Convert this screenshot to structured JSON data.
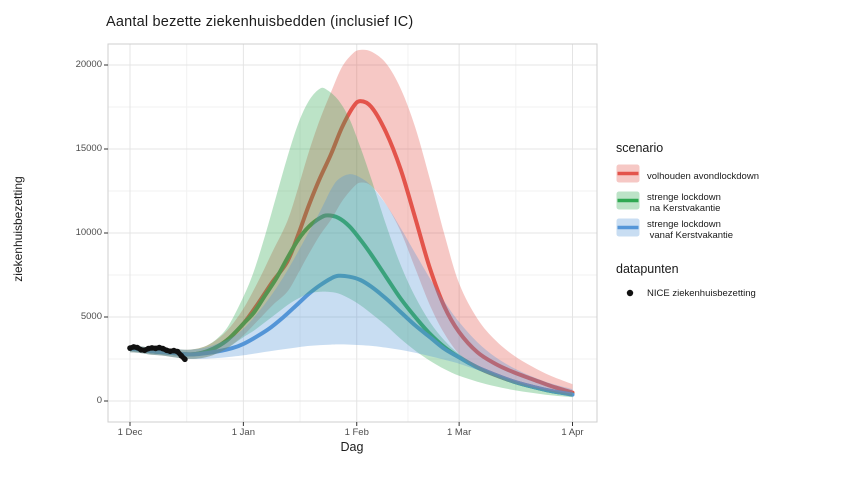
{
  "title": "Aantal bezette ziekenhuisbedden (inclusief IC)",
  "axes": {
    "x_label": "Dag",
    "y_label": "ziekenhuisbezetting",
    "x_ticks": [
      {
        "day": 0,
        "label": "1 Dec"
      },
      {
        "day": 31,
        "label": "1 Jan"
      },
      {
        "day": 62,
        "label": "1 Feb"
      },
      {
        "day": 90,
        "label": "1 Mar"
      },
      {
        "day": 121,
        "label": "1 Apr"
      }
    ],
    "y_ticks": [
      0,
      5000,
      10000,
      15000,
      20000
    ]
  },
  "legend": {
    "scenario_title": "scenario",
    "datapoints_title": "datapunten",
    "datapoints_label": "NICE ziekenhuisbezetting",
    "point_color": "#111111"
  },
  "colors": {
    "red": "#e3544c",
    "green": "#2fa852",
    "blue": "#5596d8",
    "ribbon_opacity": 0.32,
    "grid_major": "#e4e4e4",
    "grid_minor": "#f2f2f2",
    "panel_border": "#cfcfcf",
    "tick_mark": "#333333",
    "points": "#111111"
  },
  "chart_data": {
    "type": "line",
    "title": "Aantal bezette ziekenhuisbedden (inclusief IC)",
    "xlabel": "Dag",
    "ylabel": "ziekenhuisbezetting",
    "x_unit": "days since 1 Dec",
    "ylim": [
      0,
      21000
    ],
    "grid": true,
    "legend_position": "right",
    "series": [
      {
        "name": "volhouden avondlockdown",
        "legend_lines": "volhouden avondlockdown",
        "color_key": "red",
        "days": [
          0,
          3,
          6,
          9,
          12,
          15,
          18,
          21,
          24,
          27,
          31,
          35,
          39,
          43,
          46,
          49,
          52,
          55,
          58,
          61,
          63,
          66,
          70,
          74,
          78,
          82,
          86,
          90,
          95,
          100,
          105,
          110,
          115,
          121
        ],
        "line": [
          3100,
          3050,
          2950,
          2900,
          2850,
          2780,
          2800,
          2950,
          3250,
          3700,
          4600,
          5800,
          7100,
          8300,
          9900,
          11700,
          13300,
          14700,
          16300,
          17500,
          17850,
          17500,
          16000,
          13800,
          10900,
          7900,
          5600,
          4100,
          2900,
          2200,
          1700,
          1300,
          900,
          500
        ],
        "lo": [
          2900,
          2850,
          2750,
          2700,
          2600,
          2520,
          2520,
          2620,
          2850,
          3200,
          3900,
          4800,
          5700,
          6500,
          7600,
          8800,
          9900,
          10800,
          11900,
          12700,
          13000,
          12800,
          11700,
          10100,
          7900,
          5700,
          4000,
          2800,
          1900,
          1400,
          1050,
          800,
          550,
          300
        ],
        "hi": [
          3300,
          3250,
          3150,
          3100,
          3100,
          3050,
          3100,
          3300,
          3700,
          4300,
          5500,
          7100,
          8900,
          10700,
          12700,
          14900,
          16800,
          18400,
          19900,
          20700,
          20900,
          20800,
          20100,
          18600,
          16300,
          13200,
          9900,
          7000,
          4900,
          3600,
          2700,
          2050,
          1500,
          1000
        ]
      },
      {
        "name": "strenge lockdown na Kerstvakantie",
        "legend_lines": "strenge lockdown\n na Kerstvakantie",
        "color_key": "green",
        "days": [
          0,
          3,
          6,
          9,
          12,
          15,
          18,
          21,
          24,
          27,
          31,
          34,
          37,
          40,
          43,
          46,
          49,
          52,
          54,
          57,
          60,
          63,
          66,
          70,
          74,
          78,
          82,
          86,
          90,
          95,
          100,
          105,
          110,
          115,
          121
        ],
        "line": [
          3100,
          3050,
          2950,
          2900,
          2850,
          2780,
          2800,
          2950,
          3250,
          3700,
          4600,
          5300,
          6300,
          7300,
          8500,
          9600,
          10400,
          10900,
          11050,
          10900,
          10400,
          9600,
          8700,
          7400,
          6100,
          5000,
          4000,
          3200,
          2600,
          2000,
          1550,
          1150,
          850,
          600,
          400
        ],
        "lo": [
          2900,
          2850,
          2750,
          2700,
          2600,
          2520,
          2520,
          2620,
          2850,
          3200,
          3800,
          4200,
          4700,
          5200,
          5700,
          6100,
          6400,
          6500,
          6500,
          6400,
          6100,
          5700,
          5200,
          4500,
          3700,
          3000,
          2400,
          1900,
          1500,
          1150,
          870,
          650,
          480,
          340,
          220
        ],
        "hi": [
          3300,
          3250,
          3150,
          3100,
          3100,
          3050,
          3100,
          3300,
          3750,
          4500,
          6200,
          7800,
          9900,
          12200,
          14500,
          16500,
          17900,
          18600,
          18500,
          17900,
          16800,
          15100,
          13200,
          10500,
          8100,
          6200,
          4700,
          3600,
          2800,
          2100,
          1600,
          1200,
          880,
          630,
          430
        ]
      },
      {
        "name": "strenge lockdown vanaf Kerstvakantie",
        "legend_lines": "strenge lockdown\n vanaf Kerstvakantie",
        "color_key": "blue",
        "days": [
          0,
          3,
          6,
          9,
          12,
          15,
          18,
          21,
          24,
          28,
          31,
          34,
          38,
          42,
          46,
          49,
          52,
          55,
          57,
          60,
          63,
          66,
          70,
          74,
          78,
          82,
          86,
          90,
          95,
          100,
          105,
          110,
          115,
          121
        ],
        "line": [
          3100,
          3050,
          2950,
          2900,
          2850,
          2780,
          2780,
          2850,
          2950,
          3150,
          3400,
          3750,
          4300,
          5000,
          5800,
          6400,
          6900,
          7300,
          7450,
          7400,
          7200,
          6800,
          6100,
          5300,
          4500,
          3800,
          3100,
          2600,
          2000,
          1550,
          1150,
          850,
          600,
          380
        ],
        "lo": [
          2900,
          2850,
          2750,
          2700,
          2600,
          2520,
          2500,
          2520,
          2560,
          2640,
          2720,
          2820,
          2950,
          3080,
          3200,
          3280,
          3330,
          3360,
          3370,
          3360,
          3330,
          3280,
          3180,
          3040,
          2870,
          2670,
          2450,
          2220,
          1850,
          1450,
          1050,
          750,
          500,
          250
        ],
        "hi": [
          3300,
          3250,
          3150,
          3100,
          3100,
          3050,
          3080,
          3200,
          3420,
          3800,
          4300,
          5000,
          6100,
          7400,
          8900,
          10100,
          11300,
          12600,
          13200,
          13500,
          13300,
          12800,
          11700,
          10300,
          8800,
          7300,
          5900,
          4700,
          3500,
          2600,
          1950,
          1450,
          1050,
          700
        ]
      }
    ],
    "points": {
      "name": "NICE ziekenhuisbezetting",
      "days": [
        0,
        1,
        2,
        3,
        4,
        5,
        6,
        7,
        8,
        9,
        10,
        11,
        12,
        13,
        14,
        15
      ],
      "values": [
        3150,
        3220,
        3180,
        3050,
        3020,
        3120,
        3160,
        3130,
        3180,
        3120,
        3020,
        2960,
        3000,
        2940,
        2700,
        2480
      ]
    }
  }
}
